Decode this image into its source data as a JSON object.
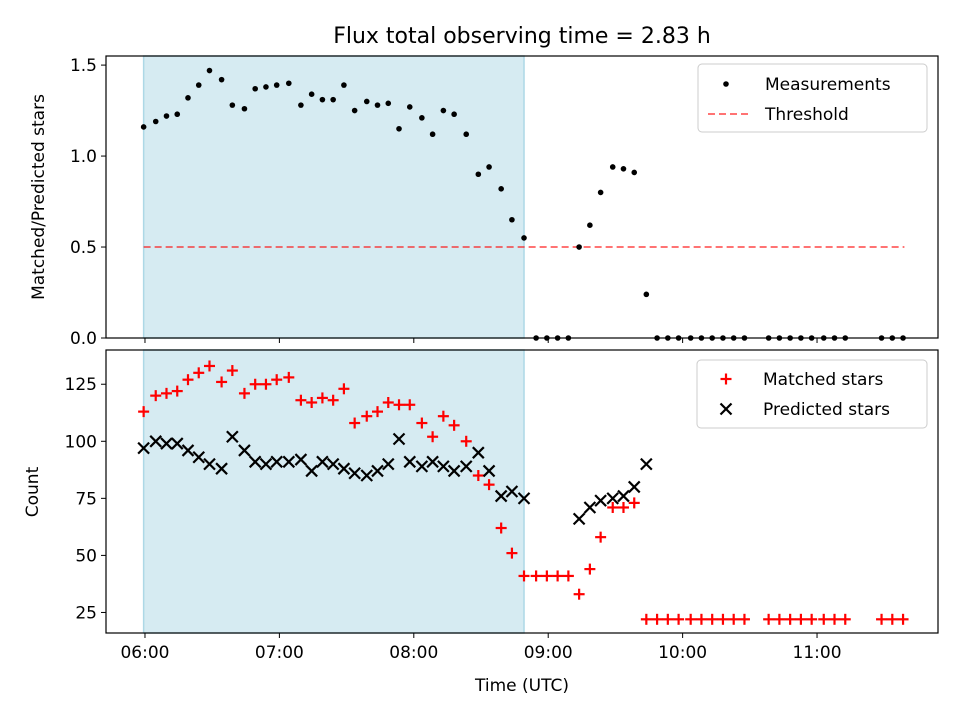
{
  "title": "Flux total observing time = 2.83 h",
  "colors": {
    "shade": "#add8e6",
    "measurement": "#000000",
    "threshold": "#ff0000",
    "matched": "#ff0000",
    "predicted": "#000000"
  },
  "chart_data": [
    {
      "type": "scatter",
      "ylabel": "Matched/Predicted stars",
      "ylim": [
        0,
        1.55
      ],
      "yticks": [
        0.0,
        0.5,
        1.0,
        1.5
      ],
      "ytick_labels": [
        "0.0",
        "0.5",
        "1.0",
        "1.5"
      ],
      "xlim": [
        5.71,
        11.9
      ],
      "xticks": [
        6,
        7,
        8,
        9,
        10,
        11
      ],
      "xtick_labels": [
        "06:00",
        "07:00",
        "08:00",
        "09:00",
        "10:00",
        "11:00"
      ],
      "shaded_span": [
        5.99,
        8.82
      ],
      "threshold": {
        "y": 0.5,
        "x": [
          5.99,
          11.65
        ]
      },
      "legend": {
        "position": "top-right",
        "entries": [
          "Measurements",
          "Threshold"
        ]
      },
      "series": [
        {
          "name": "Measurements",
          "x": [
            5.99,
            6.08,
            6.16,
            6.24,
            6.32,
            6.4,
            6.48,
            6.57,
            6.65,
            6.74,
            6.82,
            6.9,
            6.98,
            7.07,
            7.16,
            7.24,
            7.32,
            7.4,
            7.48,
            7.56,
            7.65,
            7.73,
            7.81,
            7.89,
            7.97,
            8.06,
            8.14,
            8.22,
            8.3,
            8.39,
            8.48,
            8.56,
            8.65,
            8.73,
            8.82,
            8.91,
            8.99,
            9.07,
            9.15,
            9.23,
            9.31,
            9.39,
            9.48,
            9.56,
            9.64,
            9.73,
            9.81,
            9.89,
            9.97,
            10.06,
            10.14,
            10.22,
            10.3,
            10.38,
            10.46,
            10.64,
            10.72,
            10.8,
            10.88,
            10.96,
            11.05,
            11.13,
            11.21,
            11.48,
            11.56,
            11.64
          ],
          "y": [
            1.16,
            1.19,
            1.22,
            1.23,
            1.32,
            1.39,
            1.47,
            1.42,
            1.28,
            1.26,
            1.37,
            1.38,
            1.39,
            1.4,
            1.28,
            1.34,
            1.31,
            1.31,
            1.39,
            1.25,
            1.3,
            1.28,
            1.29,
            1.15,
            1.27,
            1.21,
            1.12,
            1.25,
            1.23,
            1.12,
            0.9,
            0.94,
            0.82,
            0.65,
            0.55,
            0.0,
            0.0,
            0.0,
            0.0,
            0.5,
            0.62,
            0.8,
            0.94,
            0.93,
            0.91,
            0.24,
            0.0,
            0.0,
            0.0,
            0.0,
            0.0,
            0.0,
            0.0,
            0.0,
            0.0,
            0.0,
            0.0,
            0.0,
            0.0,
            0.0,
            0.0,
            0.0,
            0.0,
            0.0,
            0.0,
            0.0
          ]
        }
      ]
    },
    {
      "type": "scatter",
      "xlabel": "Time (UTC)",
      "ylabel": "Count",
      "ylim": [
        16,
        140
      ],
      "yticks": [
        25,
        50,
        75,
        100,
        125
      ],
      "ytick_labels": [
        "25",
        "50",
        "75",
        "100",
        "125"
      ],
      "xlim": [
        5.71,
        11.9
      ],
      "xticks": [
        6,
        7,
        8,
        9,
        10,
        11
      ],
      "xtick_labels": [
        "06:00",
        "07:00",
        "08:00",
        "09:00",
        "10:00",
        "11:00"
      ],
      "shaded_span": [
        5.99,
        8.82
      ],
      "legend": {
        "position": "top-right",
        "entries": [
          "Matched stars",
          "Predicted stars"
        ]
      },
      "series": [
        {
          "name": "Matched stars",
          "x": [
            5.99,
            6.08,
            6.16,
            6.24,
            6.32,
            6.4,
            6.48,
            6.57,
            6.65,
            6.74,
            6.82,
            6.9,
            6.98,
            7.07,
            7.16,
            7.24,
            7.32,
            7.4,
            7.48,
            7.56,
            7.65,
            7.73,
            7.81,
            7.89,
            7.97,
            8.06,
            8.14,
            8.22,
            8.3,
            8.39,
            8.48,
            8.56,
            8.65,
            8.73,
            8.82,
            8.91,
            8.99,
            9.07,
            9.15,
            9.23,
            9.31,
            9.39,
            9.48,
            9.56,
            9.64,
            9.73,
            9.81,
            9.89,
            9.97,
            10.06,
            10.14,
            10.22,
            10.3,
            10.38,
            10.46,
            10.64,
            10.72,
            10.8,
            10.88,
            10.96,
            11.05,
            11.13,
            11.21,
            11.48,
            11.56,
            11.64
          ],
          "y": [
            113,
            120,
            121,
            122,
            127,
            130,
            133,
            126,
            131,
            121,
            125,
            125,
            127,
            128,
            118,
            117,
            119,
            118,
            123,
            108,
            111,
            113,
            117,
            116,
            116,
            108,
            102,
            111,
            107,
            100,
            85,
            81,
            62,
            51,
            41,
            41,
            41,
            41,
            41,
            33,
            44,
            58,
            71,
            71,
            73,
            22,
            22,
            22,
            22,
            22,
            22,
            22,
            22,
            22,
            22,
            22,
            22,
            22,
            22,
            22,
            22,
            22,
            22,
            22,
            22,
            22
          ]
        },
        {
          "name": "Predicted stars",
          "x": [
            5.99,
            6.08,
            6.16,
            6.24,
            6.32,
            6.4,
            6.48,
            6.57,
            6.65,
            6.74,
            6.82,
            6.9,
            6.98,
            7.07,
            7.16,
            7.24,
            7.32,
            7.4,
            7.48,
            7.56,
            7.65,
            7.73,
            7.81,
            7.89,
            7.97,
            8.06,
            8.14,
            8.22,
            8.3,
            8.39,
            8.48,
            8.56,
            8.65,
            8.73,
            8.82,
            9.23,
            9.31,
            9.39,
            9.48,
            9.56,
            9.64,
            9.73
          ],
          "y": [
            97,
            100,
            99,
            99,
            96,
            93,
            90,
            88,
            102,
            96,
            91,
            90,
            91,
            91,
            92,
            87,
            91,
            90,
            88,
            86,
            85,
            87,
            90,
            101,
            91,
            89,
            91,
            89,
            87,
            89,
            95,
            87,
            76,
            78,
            75,
            66,
            71,
            74,
            75,
            76,
            80,
            90
          ]
        }
      ]
    }
  ]
}
